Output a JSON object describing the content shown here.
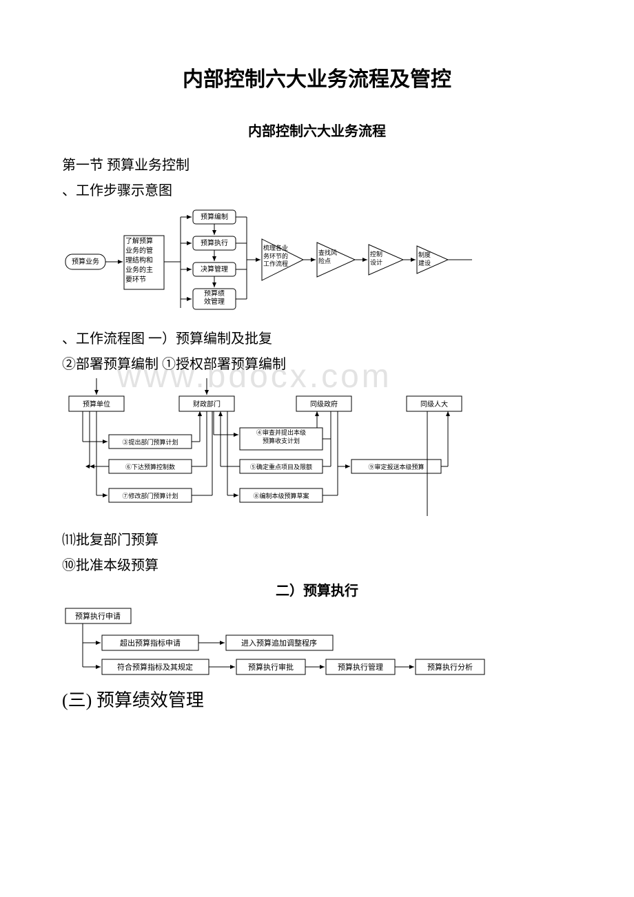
{
  "doc": {
    "title_main": "内部控制六大业务流程及管控",
    "subtitle": "内部控制六大业务流程",
    "sec1_title": "第一节 预算业务控制",
    "work_steps_label": "、工作步骤示意图",
    "work_flow_label": "、工作流程图 一）预算编制及批复",
    "flow2_label1": "②部署预算编制 ①授权部署预算编制",
    "flow2_label2": "⑾批复部门预算",
    "flow2_label3": "⑩批准本级预算",
    "sec2_title": "二）预算执行",
    "sec3_title": "(三) 预算绩效管理",
    "watermark": "www.bdocx.com"
  },
  "diagram1": {
    "start": "预算业务",
    "sidebox": "了解预算\n业务的管\n理结构和\n业务的主\n要环节",
    "n1": "预算编制",
    "n2": "预算执行",
    "n3": "决算管理",
    "n4": "预算绩\n效管理",
    "tri1": "梳理各业\n务环节的\n工作流程",
    "tri2": "查找风\n险点",
    "tri3": "控制\n设计",
    "tri4": "制度\n建设",
    "stroke": "#000000",
    "fill": "#ffffff",
    "font_size": 10
  },
  "diagram2": {
    "b1": "预算单位",
    "b2": "财政部门",
    "b3": "同级政府",
    "b4": "同级人大",
    "c1": "③提出部门预算计划",
    "c2": "④审查并提出本级\n预算收支计划",
    "c3": "⑥下达预算控制数",
    "c4": "⑤确定重点项目及限额",
    "c5": "⑦修改部门预算计划",
    "c6": "⑧编制本级预算草案",
    "c7": "⑨审定报送本级预算",
    "stroke": "#000000",
    "font_size": 10
  },
  "diagram3": {
    "b1": "预算执行申请",
    "b2": "超出预算指标申请",
    "b3": "进入预算追加调整程序",
    "b4": "符合预算指标及其规定",
    "b5": "预算执行审批",
    "b6": "预算执行管理",
    "b7": "预算执行分析",
    "stroke": "#000000",
    "font_size": 11
  }
}
